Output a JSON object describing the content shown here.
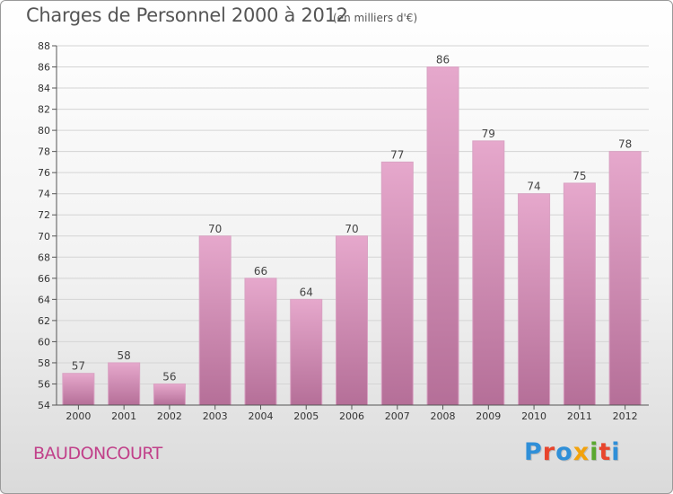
{
  "header": {
    "title": "Charges de Personnel 2000 à 2012",
    "subtitle": "(en milliers d'€)"
  },
  "footer": {
    "location": "BAUDONCOURT",
    "logo_text": "Proxiti"
  },
  "colors": {
    "bar_light": "#e6a8cc",
    "bar_dark": "#b56f98",
    "city": "#c1418a",
    "logo": [
      "#2f8fd8",
      "#e8452c",
      "#2f8fd8",
      "#f2a20c",
      "#5aa82f",
      "#e8452c",
      "#2f8fd8"
    ]
  },
  "chart_data": {
    "type": "bar",
    "title": "Charges de Personnel 2000 à 2012",
    "subtitle": "(en milliers d'€)",
    "categories": [
      "2000",
      "2001",
      "2002",
      "2003",
      "2004",
      "2005",
      "2006",
      "2007",
      "2008",
      "2009",
      "2010",
      "2011",
      "2012"
    ],
    "values": [
      57,
      58,
      56,
      70,
      66,
      64,
      70,
      77,
      86,
      79,
      74,
      75,
      78
    ],
    "ylim": [
      54,
      88
    ],
    "yticks": [
      54,
      56,
      58,
      60,
      62,
      64,
      66,
      68,
      70,
      72,
      74,
      76,
      78,
      80,
      82,
      84,
      86,
      88
    ],
    "grid": true,
    "legend": "none"
  }
}
